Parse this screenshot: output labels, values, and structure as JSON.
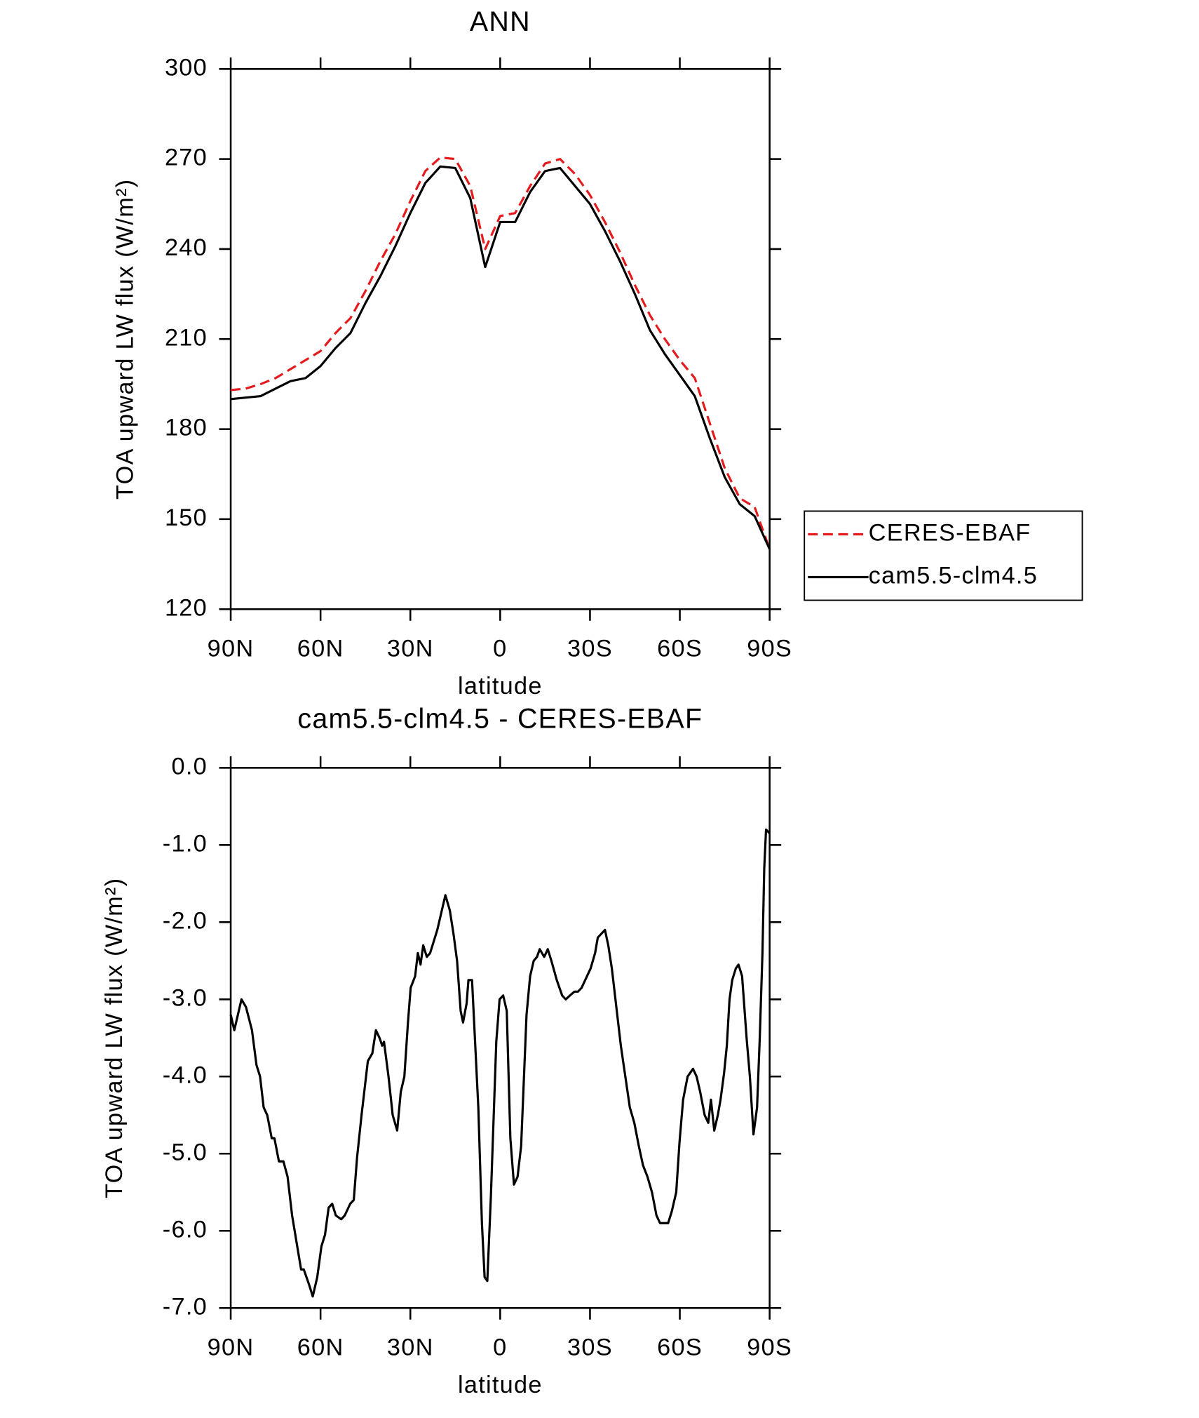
{
  "chart_data": [
    {
      "type": "line",
      "title": "ANN",
      "xlabel": "latitude",
      "ylabel": "TOA upward LW flux (W/m²)",
      "x": [
        90,
        85,
        80,
        75,
        70,
        65,
        60,
        55,
        50,
        45,
        40,
        35,
        30,
        25,
        20,
        15,
        10,
        5,
        0,
        -5,
        -10,
        -15,
        -20,
        -25,
        -30,
        -35,
        -40,
        -45,
        -50,
        -55,
        -60,
        -65,
        -70,
        -75,
        -80,
        -85,
        -90
      ],
      "series": [
        {
          "name": "CERES-EBAF",
          "color": "#e41a1c",
          "dashed": true,
          "values": [
            193,
            193.5,
            195,
            197,
            200,
            203,
            206,
            212,
            217,
            226,
            236,
            245,
            256,
            266,
            270.5,
            270,
            261,
            240,
            251,
            252,
            261,
            268.5,
            270,
            265,
            258,
            249,
            239,
            228,
            218,
            210,
            203,
            197,
            182,
            167,
            157,
            154,
            140
          ]
        },
        {
          "name": "cam5.5-clm4.5",
          "color": "#000000",
          "dashed": false,
          "values": [
            190,
            190.5,
            191,
            193.5,
            196,
            197,
            201,
            207,
            212,
            222,
            231,
            241,
            252,
            262,
            267.5,
            267,
            257,
            234,
            249,
            249,
            259,
            266,
            267,
            261,
            255,
            246,
            236,
            225,
            213,
            205,
            198,
            191,
            177,
            164,
            155,
            151,
            140
          ]
        }
      ],
      "xlim": [
        90,
        -90
      ],
      "xticks": [
        {
          "value": 90,
          "label": "90N"
        },
        {
          "value": 60,
          "label": "60N"
        },
        {
          "value": 30,
          "label": "30N"
        },
        0,
        {
          "value": -30,
          "label": "30S"
        },
        {
          "value": -60,
          "label": "60S"
        },
        {
          "value": -90,
          "label": "90S"
        }
      ],
      "ylim": [
        120,
        300
      ],
      "yticks": [
        120,
        150,
        180,
        210,
        240,
        270,
        300
      ],
      "legend": "right"
    },
    {
      "type": "line",
      "title": "cam5.5-clm4.5 - CERES-EBAF",
      "xlabel": "latitude",
      "ylabel": "TOA upward LW flux (W/m²)",
      "x": [
        90,
        88.8,
        86.4,
        84.9,
        82.9,
        81.4,
        80.2,
        79.0,
        77.8,
        76.3,
        75.4,
        73.9,
        72.4,
        71.0,
        69.5,
        68.0,
        66.5,
        65.6,
        63.8,
        62.6,
        61.1,
        59.7,
        58.5,
        57.3,
        56.1,
        54.9,
        53.1,
        51.9,
        50.1,
        48.9,
        47.8,
        46.3,
        44.2,
        42.7,
        41.5,
        40.3,
        39.4,
        38.8,
        37.3,
        35.9,
        34.4,
        33.2,
        32.0,
        30.8,
        29.9,
        28.4,
        27.5,
        26.6,
        25.7,
        24.5,
        23.4,
        22.2,
        21.0,
        19.8,
        18.3,
        16.8,
        15.6,
        14.4,
        13.2,
        12.4,
        11.2,
        10.6,
        9.4,
        7.3,
        6.1,
        5.2,
        4.3,
        3.1,
        1.3,
        0.2,
        -1.0,
        -2.2,
        -3.4,
        -4.6,
        -5.8,
        -7.0,
        -8.8,
        -10.0,
        -11.2,
        -12.3,
        -13.2,
        -14.7,
        -15.9,
        -17.1,
        -18.9,
        -20.7,
        -21.9,
        -23.3,
        -24.8,
        -26.0,
        -27.2,
        -29.0,
        -30.2,
        -31.7,
        -32.6,
        -33.8,
        -35.0,
        -36.1,
        -37.3,
        -38.8,
        -40.3,
        -41.8,
        -43.3,
        -44.8,
        -46.3,
        -47.7,
        -49.2,
        -50.7,
        -52.2,
        -53.4,
        -54.6,
        -56.1,
        -57.3,
        -58.8,
        -59.9,
        -61.1,
        -62.6,
        -64.4,
        -65.6,
        -66.8,
        -68.3,
        -69.5,
        -70.4,
        -71.5,
        -72.7,
        -73.6,
        -74.8,
        -75.7,
        -76.6,
        -77.5,
        -78.7,
        -79.6,
        -80.8,
        -82.3,
        -83.4,
        -84.6,
        -85.8,
        -86.7,
        -87.6,
        -88.2,
        -88.8,
        -90
      ],
      "color": "#000000",
      "values": [
        -3.2,
        -3.4,
        -3.0,
        -3.1,
        -3.4,
        -3.85,
        -4.0,
        -4.4,
        -4.5,
        -4.8,
        -4.8,
        -5.1,
        -5.1,
        -5.3,
        -5.8,
        -6.15,
        -6.5,
        -6.5,
        -6.7,
        -6.85,
        -6.6,
        -6.2,
        -6.05,
        -5.7,
        -5.65,
        -5.8,
        -5.85,
        -5.8,
        -5.65,
        -5.6,
        -5.05,
        -4.5,
        -3.8,
        -3.7,
        -3.4,
        -3.5,
        -3.6,
        -3.55,
        -4.0,
        -4.5,
        -4.7,
        -4.2,
        -4.0,
        -3.3,
        -2.85,
        -2.7,
        -2.4,
        -2.55,
        -2.3,
        -2.45,
        -2.4,
        -2.25,
        -2.1,
        -1.9,
        -1.65,
        -1.85,
        -2.15,
        -2.5,
        -3.15,
        -3.3,
        -3.05,
        -2.75,
        -2.75,
        -4.4,
        -5.9,
        -6.6,
        -6.65,
        -5.55,
        -3.55,
        -3.0,
        -2.95,
        -3.15,
        -4.8,
        -5.4,
        -5.3,
        -4.9,
        -3.2,
        -2.7,
        -2.5,
        -2.45,
        -2.35,
        -2.45,
        -2.35,
        -2.5,
        -2.75,
        -2.95,
        -3.0,
        -2.95,
        -2.9,
        -2.9,
        -2.85,
        -2.7,
        -2.6,
        -2.4,
        -2.2,
        -2.15,
        -2.1,
        -2.3,
        -2.6,
        -3.1,
        -3.6,
        -4.0,
        -4.4,
        -4.6,
        -4.9,
        -5.15,
        -5.3,
        -5.5,
        -5.8,
        -5.9,
        -5.9,
        -5.9,
        -5.75,
        -5.5,
        -4.85,
        -4.3,
        -4.0,
        -3.9,
        -4.0,
        -4.2,
        -4.5,
        -4.6,
        -4.3,
        -4.7,
        -4.5,
        -4.3,
        -3.95,
        -3.6,
        -3.0,
        -2.75,
        -2.6,
        -2.55,
        -2.7,
        -3.5,
        -4.0,
        -4.75,
        -4.4,
        -3.5,
        -2.4,
        -1.3,
        -0.8,
        -0.85
      ],
      "xlim": [
        90,
        -90
      ],
      "xticks": [
        {
          "value": 90,
          "label": "90N"
        },
        {
          "value": 60,
          "label": "60N"
        },
        {
          "value": 30,
          "label": "30N"
        },
        0,
        {
          "value": -30,
          "label": "30S"
        },
        {
          "value": -60,
          "label": "60S"
        },
        {
          "value": -90,
          "label": "90S"
        }
      ],
      "ylim": [
        -7,
        0
      ],
      "yticks": [
        {
          "value": -7,
          "label": "-7.0"
        },
        {
          "value": -6,
          "label": "-6.0"
        },
        {
          "value": -5,
          "label": "-5.0"
        },
        {
          "value": -4,
          "label": "-4.0"
        },
        {
          "value": -3,
          "label": "-3.0"
        },
        {
          "value": -2,
          "label": "-2.0"
        },
        {
          "value": -1,
          "label": "-1.0"
        },
        {
          "value": 0,
          "label": "0.0"
        }
      ]
    }
  ]
}
